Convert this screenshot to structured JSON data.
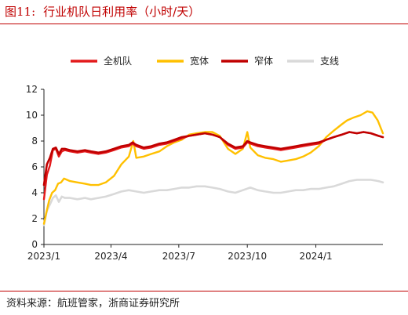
{
  "figure": {
    "label": "图11:",
    "title": "行业机队日利用率（小时/天）"
  },
  "source": {
    "prefix": "资料来源：",
    "parts": [
      "航班管家",
      "浙商证券研究所"
    ],
    "separator": "，"
  },
  "colors": {
    "title": "#c00000",
    "rule": "#c00000"
  },
  "chart_data": {
    "type": "line",
    "title": "",
    "xlabel": "",
    "ylabel": "",
    "ylim": [
      0,
      12
    ],
    "yticks": [
      0,
      2,
      4,
      6,
      8,
      10,
      12
    ],
    "xlim": [
      "2023-01-01",
      "2024-03-31"
    ],
    "xticks": [
      "2023-01-01",
      "2023-04-01",
      "2023-07-01",
      "2023-10-01",
      "2024-01-01"
    ],
    "xticklabels": [
      "2023/1",
      "2023/4",
      "2023/7",
      "2023/10",
      "2024/1"
    ],
    "grid": false,
    "legend_position": "top",
    "series": [
      {
        "name": "全机队",
        "color": "#e31a1c",
        "width": 2.4,
        "points": [
          [
            "2023-01-01",
            3.5
          ],
          [
            "2023-01-05",
            5.4
          ],
          [
            "2023-01-09",
            6.1
          ],
          [
            "2023-01-13",
            7.3
          ],
          [
            "2023-01-17",
            7.4
          ],
          [
            "2023-01-21",
            6.8
          ],
          [
            "2023-01-25",
            7.2
          ],
          [
            "2023-01-29",
            7.3
          ],
          [
            "2023-02-05",
            7.2
          ],
          [
            "2023-02-15",
            7.1
          ],
          [
            "2023-02-25",
            7.2
          ],
          [
            "2023-03-05",
            7.1
          ],
          [
            "2023-03-15",
            7.0
          ],
          [
            "2023-03-25",
            7.1
          ],
          [
            "2023-04-05",
            7.3
          ],
          [
            "2023-04-15",
            7.5
          ],
          [
            "2023-04-25",
            7.6
          ],
          [
            "2023-04-30",
            7.8
          ],
          [
            "2023-05-05",
            7.6
          ],
          [
            "2023-05-15",
            7.4
          ],
          [
            "2023-05-25",
            7.5
          ],
          [
            "2023-06-05",
            7.7
          ],
          [
            "2023-06-15",
            7.8
          ],
          [
            "2023-06-25",
            8.0
          ],
          [
            "2023-07-05",
            8.2
          ],
          [
            "2023-07-15",
            8.4
          ],
          [
            "2023-07-25",
            8.5
          ],
          [
            "2023-08-05",
            8.6
          ],
          [
            "2023-08-15",
            8.5
          ],
          [
            "2023-08-25",
            8.3
          ],
          [
            "2023-09-05",
            7.7
          ],
          [
            "2023-09-15",
            7.4
          ],
          [
            "2023-09-25",
            7.5
          ],
          [
            "2023-10-01",
            7.9
          ],
          [
            "2023-10-05",
            7.8
          ],
          [
            "2023-10-15",
            7.6
          ],
          [
            "2023-10-25",
            7.5
          ],
          [
            "2023-11-05",
            7.4
          ],
          [
            "2023-11-15",
            7.3
          ],
          [
            "2023-11-25",
            7.4
          ],
          [
            "2023-12-05",
            7.5
          ],
          [
            "2023-12-15",
            7.6
          ],
          [
            "2023-12-25",
            7.7
          ],
          [
            "2024-01-05",
            7.8
          ],
          [
            "2024-01-15",
            8.1
          ],
          [
            "2024-01-25",
            8.3
          ],
          [
            "2024-02-05",
            8.5
          ],
          [
            "2024-02-15",
            8.7
          ],
          [
            "2024-02-25",
            8.6
          ],
          [
            "2024-03-05",
            8.7
          ],
          [
            "2024-03-15",
            8.6
          ],
          [
            "2024-03-25",
            8.4
          ],
          [
            "2024-03-31",
            8.3
          ]
        ]
      },
      {
        "name": "宽体",
        "color": "#ffc000",
        "width": 2.4,
        "points": [
          [
            "2023-01-01",
            1.6
          ],
          [
            "2023-01-04",
            2.4
          ],
          [
            "2023-01-08",
            3.4
          ],
          [
            "2023-01-12",
            4.0
          ],
          [
            "2023-01-16",
            4.2
          ],
          [
            "2023-01-20",
            4.7
          ],
          [
            "2023-01-24",
            4.8
          ],
          [
            "2023-01-28",
            5.1
          ],
          [
            "2023-02-05",
            4.9
          ],
          [
            "2023-02-15",
            4.8
          ],
          [
            "2023-02-25",
            4.7
          ],
          [
            "2023-03-05",
            4.6
          ],
          [
            "2023-03-15",
            4.6
          ],
          [
            "2023-03-25",
            4.8
          ],
          [
            "2023-04-05",
            5.3
          ],
          [
            "2023-04-15",
            6.2
          ],
          [
            "2023-04-25",
            6.8
          ],
          [
            "2023-05-01",
            8.0
          ],
          [
            "2023-05-05",
            6.7
          ],
          [
            "2023-05-15",
            6.8
          ],
          [
            "2023-05-25",
            7.0
          ],
          [
            "2023-06-05",
            7.2
          ],
          [
            "2023-06-15",
            7.6
          ],
          [
            "2023-06-25",
            7.9
          ],
          [
            "2023-07-05",
            8.1
          ],
          [
            "2023-07-15",
            8.5
          ],
          [
            "2023-07-25",
            8.6
          ],
          [
            "2023-08-05",
            8.7
          ],
          [
            "2023-08-15",
            8.7
          ],
          [
            "2023-08-25",
            8.4
          ],
          [
            "2023-09-05",
            7.4
          ],
          [
            "2023-09-15",
            7.0
          ],
          [
            "2023-09-25",
            7.4
          ],
          [
            "2023-10-01",
            8.7
          ],
          [
            "2023-10-05",
            7.5
          ],
          [
            "2023-10-15",
            6.9
          ],
          [
            "2023-10-25",
            6.7
          ],
          [
            "2023-11-05",
            6.6
          ],
          [
            "2023-11-15",
            6.4
          ],
          [
            "2023-11-25",
            6.5
          ],
          [
            "2023-12-05",
            6.6
          ],
          [
            "2023-12-15",
            6.8
          ],
          [
            "2023-12-25",
            7.1
          ],
          [
            "2024-01-05",
            7.6
          ],
          [
            "2024-01-15",
            8.3
          ],
          [
            "2024-01-25",
            8.8
          ],
          [
            "2024-02-05",
            9.3
          ],
          [
            "2024-02-12",
            9.6
          ],
          [
            "2024-02-20",
            9.8
          ],
          [
            "2024-03-01",
            10.0
          ],
          [
            "2024-03-10",
            10.3
          ],
          [
            "2024-03-17",
            10.2
          ],
          [
            "2024-03-24",
            9.6
          ],
          [
            "2024-03-31",
            8.6
          ]
        ]
      },
      {
        "name": "窄体",
        "color": "#c00000",
        "width": 2.6,
        "points": [
          [
            "2023-01-01",
            4.6
          ],
          [
            "2023-01-05",
            6.2
          ],
          [
            "2023-01-09",
            6.7
          ],
          [
            "2023-01-13",
            7.4
          ],
          [
            "2023-01-17",
            7.5
          ],
          [
            "2023-01-21",
            7.0
          ],
          [
            "2023-01-25",
            7.4
          ],
          [
            "2023-01-29",
            7.4
          ],
          [
            "2023-02-05",
            7.3
          ],
          [
            "2023-02-15",
            7.2
          ],
          [
            "2023-02-25",
            7.3
          ],
          [
            "2023-03-05",
            7.2
          ],
          [
            "2023-03-15",
            7.1
          ],
          [
            "2023-03-25",
            7.2
          ],
          [
            "2023-04-05",
            7.4
          ],
          [
            "2023-04-15",
            7.6
          ],
          [
            "2023-04-25",
            7.7
          ],
          [
            "2023-04-30",
            7.9
          ],
          [
            "2023-05-05",
            7.7
          ],
          [
            "2023-05-15",
            7.5
          ],
          [
            "2023-05-25",
            7.6
          ],
          [
            "2023-06-05",
            7.8
          ],
          [
            "2023-06-15",
            7.9
          ],
          [
            "2023-06-25",
            8.1
          ],
          [
            "2023-07-05",
            8.3
          ],
          [
            "2023-07-15",
            8.4
          ],
          [
            "2023-07-25",
            8.5
          ],
          [
            "2023-08-05",
            8.6
          ],
          [
            "2023-08-15",
            8.5
          ],
          [
            "2023-08-25",
            8.3
          ],
          [
            "2023-09-05",
            7.8
          ],
          [
            "2023-09-15",
            7.5
          ],
          [
            "2023-09-25",
            7.6
          ],
          [
            "2023-10-01",
            8.0
          ],
          [
            "2023-10-05",
            7.9
          ],
          [
            "2023-10-15",
            7.7
          ],
          [
            "2023-10-25",
            7.6
          ],
          [
            "2023-11-05",
            7.5
          ],
          [
            "2023-11-15",
            7.4
          ],
          [
            "2023-11-25",
            7.5
          ],
          [
            "2023-12-05",
            7.6
          ],
          [
            "2023-12-15",
            7.7
          ],
          [
            "2023-12-25",
            7.8
          ],
          [
            "2024-01-05",
            7.9
          ],
          [
            "2024-01-15",
            8.1
          ],
          [
            "2024-01-25",
            8.3
          ],
          [
            "2024-02-05",
            8.5
          ],
          [
            "2024-02-15",
            8.7
          ],
          [
            "2024-02-25",
            8.6
          ],
          [
            "2024-03-05",
            8.7
          ],
          [
            "2024-03-15",
            8.6
          ],
          [
            "2024-03-25",
            8.4
          ],
          [
            "2024-03-31",
            8.3
          ]
        ]
      },
      {
        "name": "支线",
        "color": "#d9d9d9",
        "width": 2.6,
        "points": [
          [
            "2023-01-01",
            1.5
          ],
          [
            "2023-01-05",
            2.6
          ],
          [
            "2023-01-09",
            3.1
          ],
          [
            "2023-01-13",
            3.6
          ],
          [
            "2023-01-17",
            3.8
          ],
          [
            "2023-01-21",
            3.3
          ],
          [
            "2023-01-25",
            3.7
          ],
          [
            "2023-01-29",
            3.6
          ],
          [
            "2023-02-05",
            3.6
          ],
          [
            "2023-02-15",
            3.5
          ],
          [
            "2023-02-25",
            3.6
          ],
          [
            "2023-03-05",
            3.5
          ],
          [
            "2023-03-15",
            3.6
          ],
          [
            "2023-03-25",
            3.7
          ],
          [
            "2023-04-05",
            3.9
          ],
          [
            "2023-04-15",
            4.1
          ],
          [
            "2023-04-25",
            4.2
          ],
          [
            "2023-05-05",
            4.1
          ],
          [
            "2023-05-15",
            4.0
          ],
          [
            "2023-05-25",
            4.1
          ],
          [
            "2023-06-05",
            4.2
          ],
          [
            "2023-06-15",
            4.2
          ],
          [
            "2023-06-25",
            4.3
          ],
          [
            "2023-07-05",
            4.4
          ],
          [
            "2023-07-15",
            4.4
          ],
          [
            "2023-07-25",
            4.5
          ],
          [
            "2023-08-05",
            4.5
          ],
          [
            "2023-08-15",
            4.4
          ],
          [
            "2023-08-25",
            4.3
          ],
          [
            "2023-09-05",
            4.1
          ],
          [
            "2023-09-15",
            4.0
          ],
          [
            "2023-09-25",
            4.2
          ],
          [
            "2023-10-05",
            4.4
          ],
          [
            "2023-10-15",
            4.2
          ],
          [
            "2023-10-25",
            4.1
          ],
          [
            "2023-11-05",
            4.0
          ],
          [
            "2023-11-15",
            4.0
          ],
          [
            "2023-11-25",
            4.1
          ],
          [
            "2023-12-05",
            4.2
          ],
          [
            "2023-12-15",
            4.2
          ],
          [
            "2023-12-25",
            4.3
          ],
          [
            "2024-01-05",
            4.3
          ],
          [
            "2024-01-15",
            4.4
          ],
          [
            "2024-01-25",
            4.5
          ],
          [
            "2024-02-05",
            4.7
          ],
          [
            "2024-02-15",
            4.9
          ],
          [
            "2024-02-25",
            5.0
          ],
          [
            "2024-03-05",
            5.0
          ],
          [
            "2024-03-15",
            5.0
          ],
          [
            "2024-03-25",
            4.9
          ],
          [
            "2024-03-31",
            4.8
          ]
        ]
      }
    ]
  }
}
